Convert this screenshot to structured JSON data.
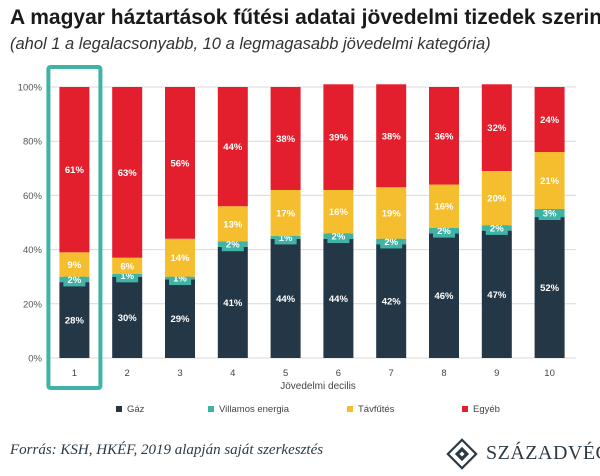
{
  "header": {
    "title": "A magyar háztartások fűtési adatai jövedelmi tizedek szerint",
    "subtitle": "(ahol 1 a legalacsonyabb, 10 a legmagasabb jövedelmi kategória)"
  },
  "footer": {
    "source": "Forrás: KSH, HKÉF, 2019 alapján saját szerkesztés",
    "logo_text": "SZÁZADVÉG"
  },
  "chart_data": {
    "type": "bar",
    "stacked": true,
    "categories": [
      "1",
      "2",
      "3",
      "4",
      "5",
      "6",
      "7",
      "8",
      "9",
      "10"
    ],
    "xlabel": "Jövedelmi decilis",
    "ylabel": "",
    "ylim": [
      0,
      100
    ],
    "yticks": [
      "0%",
      "20%",
      "40%",
      "60%",
      "80%",
      "100%"
    ],
    "grid": true,
    "legend_position": "bottom",
    "highlighted_category": "1",
    "series": [
      {
        "name": "Gáz",
        "color": "#243746",
        "values": [
          28,
          30,
          29,
          41,
          44,
          44,
          42,
          46,
          47,
          52
        ]
      },
      {
        "name": "Villamos energia",
        "color": "#3fb3a6",
        "values": [
          2,
          1,
          1,
          2,
          1,
          2,
          2,
          2,
          2,
          3
        ]
      },
      {
        "name": "Távfűtés",
        "color": "#f5be2e",
        "values": [
          9,
          6,
          14,
          13,
          17,
          16,
          19,
          16,
          20,
          21
        ]
      },
      {
        "name": "Egyéb",
        "color": "#e31f2e",
        "values": [
          61,
          63,
          56,
          44,
          38,
          39,
          38,
          36,
          32,
          24
        ]
      }
    ],
    "highlight_color": "#3fb3a6"
  }
}
